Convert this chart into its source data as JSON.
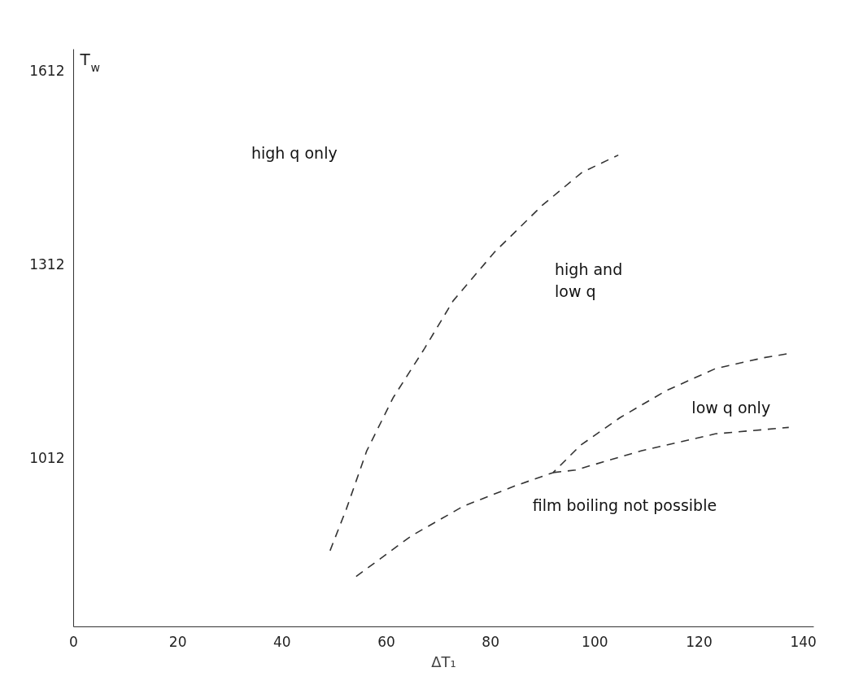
{
  "chart_data": {
    "type": "line",
    "xlabel": "ΔT₁",
    "ylabel": "T$_{w}$",
    "xlim": [
      0,
      142
    ],
    "ylim": [
      750,
      1645
    ],
    "xticks": [
      0,
      20,
      40,
      60,
      80,
      100,
      120,
      140
    ],
    "yticks": [
      1612,
      1312,
      1012
    ],
    "grid": false,
    "marker": "none",
    "line_style": "dashed",
    "series": [
      {
        "color": "#333333",
        "x": [
          49.2,
          52.3,
          56.2,
          61.3,
          67.3,
          72.8,
          80.8,
          89.9,
          97.5,
          104.5
        ],
        "values": [
          868,
          932,
          1022,
          1105,
          1181,
          1255,
          1331,
          1403,
          1454,
          1481
        ]
      },
      {
        "color": "#333333",
        "x": [
          54.2,
          64.8,
          74.8,
          84.9,
          92.0,
          97.2,
          104.8,
          113.7,
          123.1,
          132.4,
          136.9
        ],
        "values": [
          828,
          891,
          937,
          969,
          989,
          1031,
          1074,
          1116,
          1150,
          1167,
          1173
        ]
      },
      {
        "color": "#333333",
        "x": [
          92.0,
          96.3,
          109,
          123.1,
          137.2
        ],
        "values": [
          989,
          993,
          1023,
          1049,
          1059
        ]
      }
    ],
    "annotations": [
      "high q only",
      "high and\nlow q",
      "low q only",
      "film boiling not possible"
    ]
  }
}
